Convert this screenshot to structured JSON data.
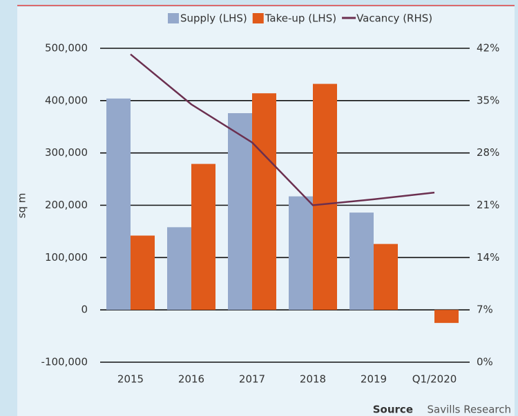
{
  "chart_data": {
    "type": "bar",
    "categories": [
      "2015",
      "2016",
      "2017",
      "2018",
      "2019",
      "Q1/2020"
    ],
    "series": [
      {
        "name": "Supply (LHS)",
        "color": "#94a8cb",
        "values": [
          404000,
          158000,
          376000,
          217000,
          186000,
          null
        ]
      },
      {
        "name": "Take-up (LHS)",
        "color": "#e05a1a",
        "values": [
          142000,
          279000,
          414000,
          432000,
          126000,
          -25000
        ]
      },
      {
        "name": "Vacancy (RHS)",
        "color": "#6b2f4f",
        "type": "line",
        "axis": "y2",
        "values": [
          41.2,
          34.5,
          29.4,
          21.0,
          21.8,
          22.7
        ]
      }
    ],
    "ylabel": "sq m",
    "ylim": [
      -100000,
      500000
    ],
    "yticks": [
      {
        "value": -100000,
        "label": "-100,000"
      },
      0,
      {
        "value": 100000,
        "label": "100,000"
      },
      {
        "value": 200000,
        "label": "200,000"
      },
      {
        "value": 300000,
        "label": "300,000"
      },
      {
        "value": 400000,
        "label": "400,000"
      },
      {
        "value": 500000,
        "label": "500,000"
      }
    ],
    "y2lim": [
      0,
      42
    ],
    "y2ticks": [
      {
        "value": 0,
        "label": "0%"
      },
      {
        "value": 7,
        "label": "7%"
      },
      {
        "value": 14,
        "label": "14%"
      },
      {
        "value": 21,
        "label": "21%"
      },
      {
        "value": 28,
        "label": "28%"
      },
      {
        "value": 35,
        "label": "35%"
      },
      {
        "value": 42,
        "label": "42%"
      }
    ],
    "grid": true,
    "source_label": "Source",
    "source": "Savills Research"
  }
}
